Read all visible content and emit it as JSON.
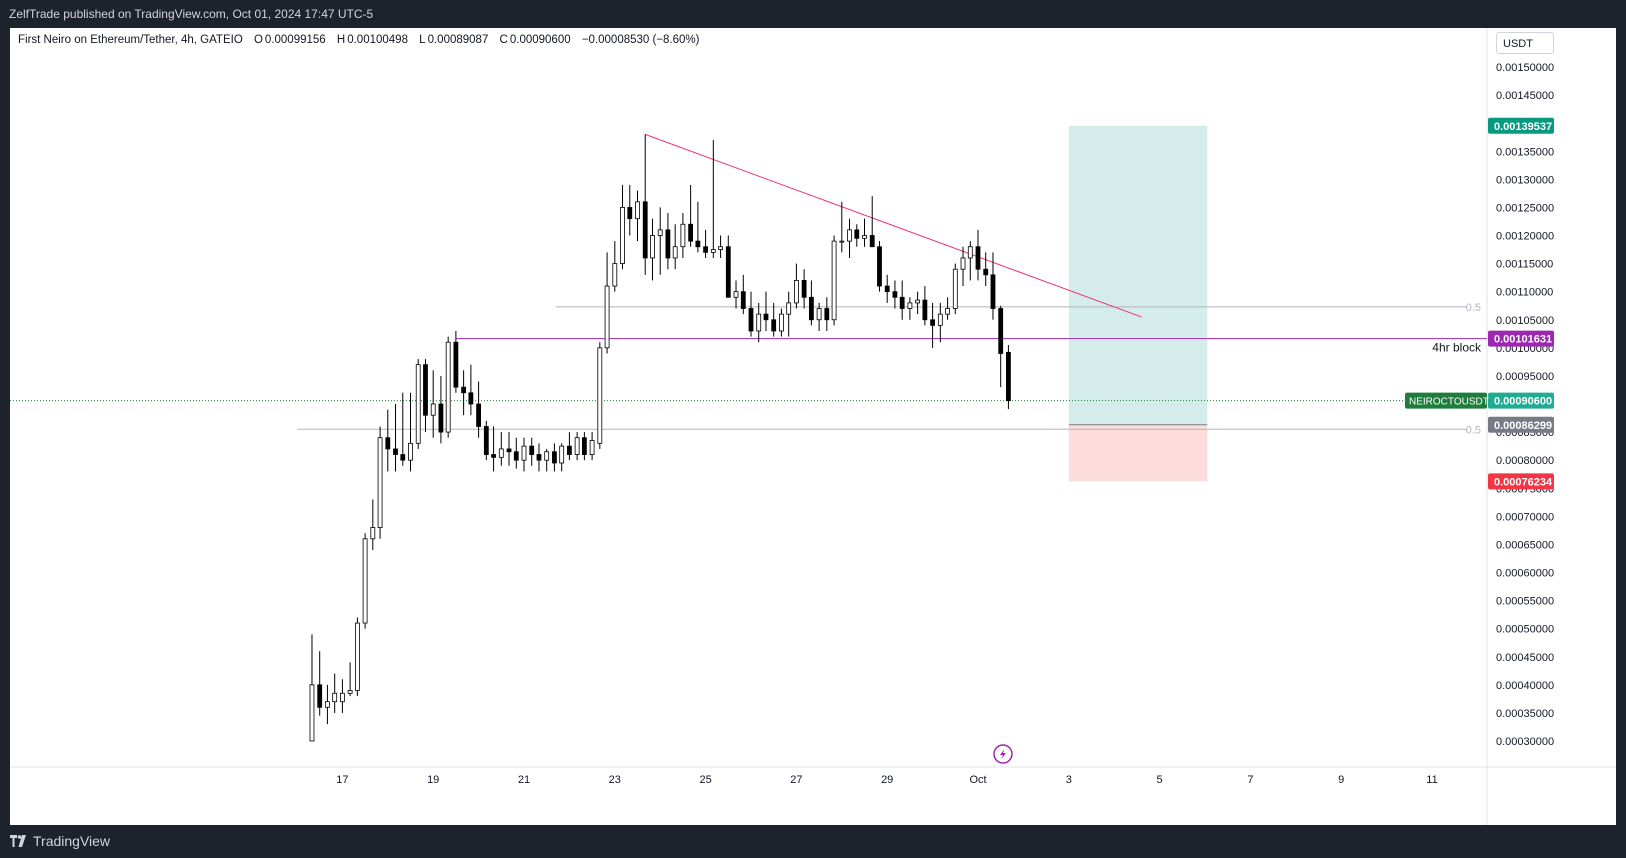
{
  "publish_info": "ZelfTrade published on TradingView.com, Oct 01, 2024 17:47 UTC-5",
  "footer": {
    "brand": "TradingView"
  },
  "legend": {
    "symbol": "First Neiro on Ethereum/Tether, 4h, GATEIO",
    "open_label": "O",
    "open": "0.00099156",
    "high_label": "H",
    "high": "0.00100498",
    "low_label": "L",
    "low": "0.00089087",
    "close_label": "C",
    "close": "0.00090600",
    "change": "−0.00008530 (−8.60%)"
  },
  "currency_button": "USDT",
  "chart_data": {
    "type": "candlestick",
    "title": "First Neiro on Ethereum/Tether, 4h, GATEIO",
    "y_axis": {
      "ylim": [
        0.00026,
        0.00159
      ],
      "ticks": [
        0.0003,
        0.00035,
        0.0004,
        0.00045,
        0.0005,
        0.00055,
        0.0006,
        0.00065,
        0.0007,
        0.00075,
        0.0008,
        0.00085,
        0.0009,
        0.00095,
        0.001,
        0.00105,
        0.0011,
        0.00115,
        0.0012,
        0.00125,
        0.0013,
        0.00135,
        0.0014,
        0.00145,
        0.0015
      ],
      "tick_labels": [
        "0.00030000",
        "0.00035000",
        "0.00040000",
        "0.00045000",
        "0.00050000",
        "0.00055000",
        "0.00060000",
        "0.00065000",
        "0.00070000",
        "0.00075000",
        "0.00080000",
        "0.00085000",
        "0.00090000",
        "0.00095000",
        "0.00100000",
        "0.00105000",
        "0.00110000",
        "0.00115000",
        "0.00120000",
        "0.00125000",
        "0.00130000",
        "0.00135000",
        "0.00140000",
        "0.00145000",
        "0.00150000"
      ]
    },
    "x_axis": {
      "range_days": [
        14.55,
        26.45
      ],
      "ticks": [
        {
          "day": 17,
          "label": "17"
        },
        {
          "day": 19,
          "label": "19"
        },
        {
          "day": 21,
          "label": "21"
        },
        {
          "day": 23,
          "label": "23"
        },
        {
          "day": 25,
          "label": "25"
        },
        {
          "day": 27,
          "label": "27"
        },
        {
          "day": 29,
          "label": "29"
        },
        {
          "day": 31,
          "label": "Oct"
        },
        {
          "day": 33,
          "label": "3"
        },
        {
          "day": 35,
          "label": "5"
        },
        {
          "day": 37,
          "label": "7"
        },
        {
          "day": 39,
          "label": "9"
        },
        {
          "day": 41,
          "label": "11"
        }
      ]
    },
    "ohlc_columns": [
      "day",
      "open",
      "high",
      "low",
      "close"
    ],
    "candles": [
      [
        16.33,
        0.0003,
        0.00049,
        0.0003,
        0.0004
      ],
      [
        16.5,
        0.0004,
        0.00046,
        0.000345,
        0.00036
      ],
      [
        16.67,
        0.00036,
        0.0004,
        0.00033,
        0.00037
      ],
      [
        16.83,
        0.00037,
        0.00042,
        0.00035,
        0.000385
      ],
      [
        17.0,
        0.00037,
        0.00041,
        0.00035,
        0.000385
      ],
      [
        17.17,
        0.000385,
        0.00044,
        0.00038,
        0.00039
      ],
      [
        17.33,
        0.00039,
        0.00052,
        0.00038,
        0.00051
      ],
      [
        17.5,
        0.00051,
        0.00067,
        0.0005,
        0.00066
      ],
      [
        17.67,
        0.00066,
        0.00073,
        0.00064,
        0.00068
      ],
      [
        17.83,
        0.00068,
        0.00086,
        0.00066,
        0.00084
      ],
      [
        18.0,
        0.00084,
        0.00089,
        0.00078,
        0.00082
      ],
      [
        18.17,
        0.00082,
        0.0009,
        0.00078,
        0.00081
      ],
      [
        18.33,
        0.00081,
        0.00092,
        0.00079,
        0.0008
      ],
      [
        18.5,
        0.0008,
        0.00092,
        0.00078,
        0.00083
      ],
      [
        18.67,
        0.00083,
        0.00098,
        0.00082,
        0.00097
      ],
      [
        18.83,
        0.00097,
        0.00098,
        0.00085,
        0.00088
      ],
      [
        19.0,
        0.00088,
        0.00096,
        0.00084,
        0.0009
      ],
      [
        19.17,
        0.0009,
        0.00095,
        0.00083,
        0.00085
      ],
      [
        19.33,
        0.00085,
        0.00102,
        0.00084,
        0.00101
      ],
      [
        19.5,
        0.00101,
        0.00103,
        0.00092,
        0.00093
      ],
      [
        19.67,
        0.00093,
        0.00096,
        0.00088,
        0.00092
      ],
      [
        19.83,
        0.00092,
        0.00097,
        0.00088,
        0.0009
      ],
      [
        20.0,
        0.0009,
        0.00094,
        0.00084,
        0.00086
      ],
      [
        20.17,
        0.00086,
        0.00087,
        0.0008,
        0.00081
      ],
      [
        20.33,
        0.00081,
        0.00086,
        0.00078,
        0.000805
      ],
      [
        20.5,
        0.000805,
        0.00085,
        0.00079,
        0.00082
      ],
      [
        20.67,
        0.00082,
        0.00085,
        0.00079,
        0.000815
      ],
      [
        20.83,
        0.000815,
        0.00084,
        0.000785,
        0.0008
      ],
      [
        21.0,
        0.0008,
        0.00084,
        0.00078,
        0.000825
      ],
      [
        21.17,
        0.000825,
        0.00084,
        0.00079,
        0.00081
      ],
      [
        21.33,
        0.00081,
        0.00083,
        0.00078,
        0.0008
      ],
      [
        21.5,
        0.0008,
        0.00082,
        0.00078,
        0.000815
      ],
      [
        21.67,
        0.000815,
        0.00083,
        0.00078,
        0.000795
      ],
      [
        21.83,
        0.000795,
        0.00083,
        0.00078,
        0.000825
      ],
      [
        22.0,
        0.000825,
        0.00085,
        0.0008,
        0.00081
      ],
      [
        22.17,
        0.00081,
        0.00085,
        0.0008,
        0.00084
      ],
      [
        22.33,
        0.00084,
        0.00085,
        0.0008,
        0.00081
      ],
      [
        22.5,
        0.00081,
        0.00085,
        0.0008,
        0.000835
      ],
      [
        22.67,
        0.00083,
        0.00101,
        0.00082,
        0.001
      ],
      [
        22.83,
        0.001,
        0.00117,
        0.00099,
        0.00111
      ],
      [
        23.0,
        0.00111,
        0.00119,
        0.0011,
        0.00115
      ],
      [
        23.17,
        0.00115,
        0.00129,
        0.00114,
        0.00125
      ],
      [
        23.33,
        0.00125,
        0.00129,
        0.0012,
        0.00123
      ],
      [
        23.5,
        0.00123,
        0.00128,
        0.00119,
        0.00126
      ],
      [
        23.67,
        0.00126,
        0.00138,
        0.00113,
        0.00116
      ],
      [
        23.83,
        0.00116,
        0.00123,
        0.00112,
        0.0012
      ],
      [
        24.0,
        0.0012,
        0.00125,
        0.00113,
        0.00121
      ],
      [
        24.17,
        0.00121,
        0.00124,
        0.00114,
        0.00116
      ],
      [
        24.33,
        0.00116,
        0.00122,
        0.00114,
        0.00118
      ],
      [
        24.5,
        0.00118,
        0.00124,
        0.00116,
        0.00122
      ],
      [
        24.67,
        0.00122,
        0.00129,
        0.00118,
        0.00119
      ],
      [
        24.83,
        0.00119,
        0.00126,
        0.00117,
        0.00118
      ],
      [
        25.0,
        0.00118,
        0.00121,
        0.00116,
        0.00117
      ],
      [
        25.17,
        0.00117,
        0.00137,
        0.00116,
        0.001175
      ],
      [
        25.33,
        0.001175,
        0.0012,
        0.00116,
        0.00118
      ],
      [
        25.5,
        0.00118,
        0.0012,
        0.00109,
        0.00109
      ],
      [
        25.67,
        0.00109,
        0.00112,
        0.00107,
        0.0011
      ],
      [
        25.83,
        0.0011,
        0.00113,
        0.00106,
        0.00107
      ],
      [
        26.0,
        0.00107,
        0.0011,
        0.00102,
        0.00103
      ],
      [
        26.17,
        0.00103,
        0.00108,
        0.00101,
        0.00106
      ],
      [
        26.33,
        0.00106,
        0.0011,
        0.00103,
        0.00105
      ],
      [
        26.5,
        0.00105,
        0.00108,
        0.00102,
        0.00103
      ],
      [
        26.67,
        0.00103,
        0.00107,
        0.00102,
        0.00106
      ],
      [
        26.83,
        0.00106,
        0.0011,
        0.00102,
        0.00108
      ],
      [
        27.0,
        0.00108,
        0.00115,
        0.00107,
        0.00112
      ],
      [
        27.17,
        0.00112,
        0.00114,
        0.00107,
        0.00109
      ],
      [
        27.33,
        0.00109,
        0.00112,
        0.00104,
        0.00105
      ],
      [
        27.5,
        0.00105,
        0.00108,
        0.00103,
        0.00107
      ],
      [
        27.67,
        0.00107,
        0.00109,
        0.00103,
        0.00105
      ],
      [
        27.83,
        0.00105,
        0.0012,
        0.00104,
        0.00119
      ],
      [
        28.0,
        0.00119,
        0.00126,
        0.00117,
        0.00119
      ],
      [
        28.17,
        0.00119,
        0.00123,
        0.00116,
        0.00121
      ],
      [
        28.33,
        0.00121,
        0.00122,
        0.00118,
        0.001195
      ],
      [
        28.5,
        0.001195,
        0.00123,
        0.00118,
        0.0012
      ],
      [
        28.67,
        0.0012,
        0.00127,
        0.00118,
        0.00118
      ],
      [
        28.83,
        0.00118,
        0.00119,
        0.0011,
        0.00111
      ],
      [
        29.0,
        0.00111,
        0.00113,
        0.00108,
        0.0011
      ],
      [
        29.17,
        0.0011,
        0.00112,
        0.00107,
        0.00109
      ],
      [
        29.33,
        0.00109,
        0.00112,
        0.00105,
        0.00107
      ],
      [
        29.5,
        0.00107,
        0.00109,
        0.00105,
        0.00108
      ],
      [
        29.67,
        0.00108,
        0.0011,
        0.00106,
        0.001085
      ],
      [
        29.83,
        0.001085,
        0.00111,
        0.00104,
        0.00105
      ],
      [
        30.0,
        0.00105,
        0.00108,
        0.001,
        0.00104
      ],
      [
        30.17,
        0.00104,
        0.00108,
        0.00101,
        0.00106
      ],
      [
        30.33,
        0.00106,
        0.00109,
        0.00105,
        0.00107
      ],
      [
        30.5,
        0.00107,
        0.00115,
        0.00106,
        0.00114
      ],
      [
        30.67,
        0.00114,
        0.00118,
        0.00111,
        0.00116
      ],
      [
        30.83,
        0.00116,
        0.00119,
        0.00112,
        0.00118
      ],
      [
        31.0,
        0.00118,
        0.00121,
        0.00112,
        0.00114
      ],
      [
        31.17,
        0.00114,
        0.00117,
        0.00111,
        0.00113
      ],
      [
        31.33,
        0.00113,
        0.00117,
        0.00105,
        0.00107
      ],
      [
        31.5,
        0.00107,
        0.001075,
        0.00093,
        0.00099
      ],
      [
        31.67,
        0.000992,
        0.001005,
        0.000891,
        0.000906
      ]
    ],
    "drawings": {
      "trendline": {
        "color": "#f23470",
        "from": {
          "day": 23.67,
          "price": 0.00138
        },
        "to": {
          "day": 34.6,
          "price": 0.001055
        }
      },
      "block_line": {
        "color": "#9c27b0",
        "from_day": 19.5,
        "price": 0.00101631,
        "label": "4hr block"
      },
      "fib_levels": [
        {
          "label": "0.5",
          "price": 0.001073,
          "from_day": 21.7
        },
        {
          "label": "0.5",
          "price": 0.000855,
          "from_day": 16.0
        }
      ],
      "position": {
        "from_day": 33.0,
        "to_day": 36.05,
        "target": 0.00139537,
        "entry": 0.00086299,
        "stop": 0.00076234,
        "profit_color": "#26a69a",
        "loss_color": "#ef5350"
      },
      "event_marker": {
        "day": 31.55,
        "price": 0.00029
      }
    },
    "price_labels": [
      {
        "value": "0.00139537",
        "price": 0.00139537,
        "color": "#089981"
      },
      {
        "value": "0.00101631",
        "price": 0.00101631,
        "color": "#9c27b0"
      },
      {
        "value": "0.00090600",
        "price": 0.000906,
        "color": "#22ab94",
        "tag": "NEIROCTOUSDT",
        "tag_color": "#1e7d3c"
      },
      {
        "value": "0.00086299",
        "price": 0.00086299,
        "color": "#787b86"
      },
      {
        "value": "0.00076234",
        "price": 0.00076234,
        "color": "#f23645"
      }
    ],
    "current_price": 0.000906,
    "up_color": "#ffffff",
    "down_color": "#000000"
  }
}
